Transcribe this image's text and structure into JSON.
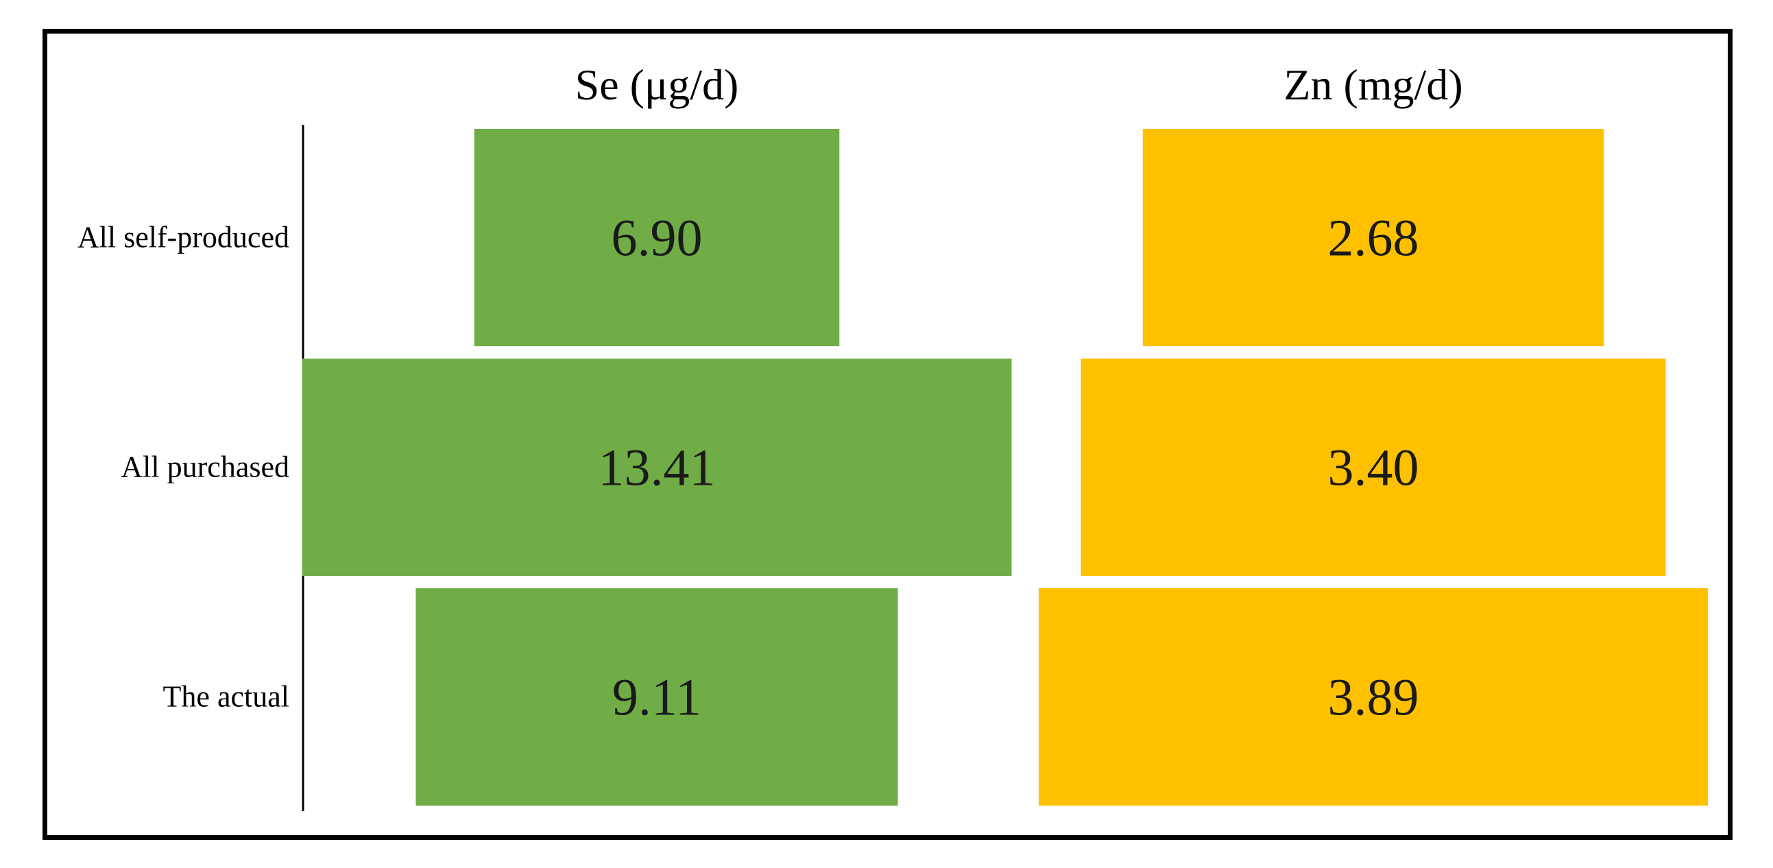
{
  "chart_data": {
    "type": "bar",
    "orientation": "horizontal",
    "layout": "centered funnel-style bars, one panel per series",
    "categories": [
      "All self-produced",
      "All purchased",
      "The actual"
    ],
    "series": [
      {
        "name": "Se (μg/d)",
        "values": [
          6.9,
          13.41,
          9.11
        ],
        "labels": [
          "6.90",
          "13.41",
          "9.11"
        ],
        "color": "#70AD47"
      },
      {
        "name": "Zn (mg/d)",
        "values": [
          2.68,
          3.4,
          3.89
        ],
        "labels": [
          "2.68",
          "3.40",
          "3.89"
        ],
        "color": "#FFC000"
      }
    ],
    "grid": false,
    "legend": "none"
  }
}
